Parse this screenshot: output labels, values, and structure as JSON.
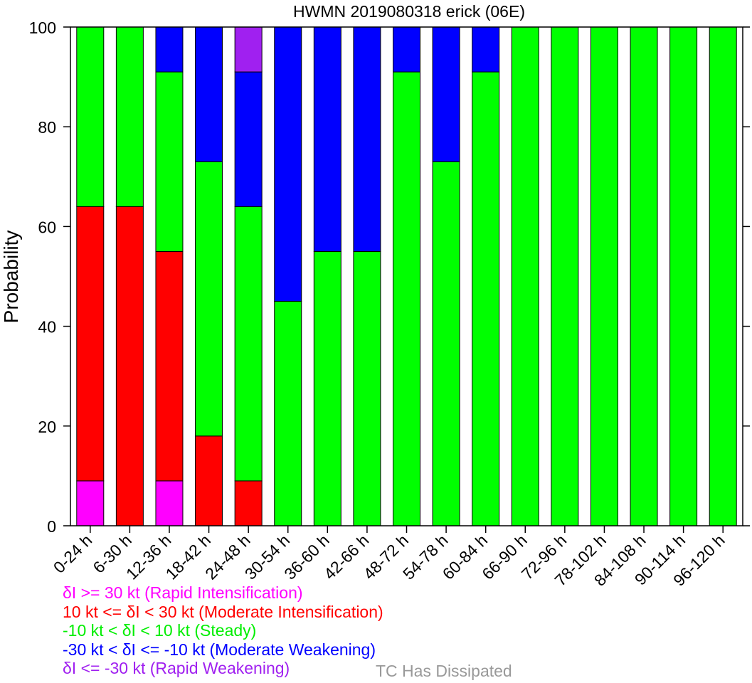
{
  "chart_data": {
    "type": "bar",
    "stacked": true,
    "title": "HWMN 2019080318 erick (06E)",
    "xlabel": "",
    "ylabel": "Probability",
    "ylim": [
      0,
      100
    ],
    "yticks": [
      0,
      20,
      40,
      60,
      80,
      100
    ],
    "grid": false,
    "legend_position": "bottom",
    "categories": [
      "0-24 h",
      "6-30 h",
      "12-36 h",
      "18-42 h",
      "24-48 h",
      "30-54 h",
      "36-60 h",
      "42-66 h",
      "48-72 h",
      "54-78 h",
      "60-84 h",
      "66-90 h",
      "72-96 h",
      "78-102 h",
      "84-108 h",
      "90-114 h",
      "96-120 h"
    ],
    "series": [
      {
        "name": "δI >= 30 kt (Rapid Intensification)",
        "color": "#ff00ff",
        "values": [
          9,
          0,
          9,
          0,
          0,
          0,
          0,
          0,
          0,
          0,
          0,
          0,
          0,
          0,
          0,
          0,
          0
        ]
      },
      {
        "name": "10 kt <= δI < 30 kt (Moderate Intensification)",
        "color": "#ff0000",
        "values": [
          55,
          64,
          46,
          18,
          9,
          0,
          0,
          0,
          0,
          0,
          0,
          0,
          0,
          0,
          0,
          0,
          0
        ]
      },
      {
        "name": "-10 kt < δI < 10 kt (Steady)",
        "color": "#00ff00",
        "values": [
          36,
          36,
          36,
          55,
          55,
          45,
          55,
          55,
          91,
          73,
          91,
          100,
          100,
          100,
          100,
          100,
          100
        ]
      },
      {
        "name": "-30 kt < δI <= -10 kt (Moderate Weakening)",
        "color": "#0000ff",
        "values": [
          0,
          0,
          9,
          27,
          27,
          55,
          45,
          45,
          9,
          27,
          9,
          0,
          0,
          0,
          0,
          0,
          0
        ]
      },
      {
        "name": "δI <= -30 kt (Rapid Weakening)",
        "color": "#a020f0",
        "values": [
          0,
          0,
          0,
          0,
          9,
          0,
          0,
          0,
          0,
          0,
          0,
          0,
          0,
          0,
          0,
          0,
          0
        ]
      }
    ],
    "dissipated_label": "TC Has Dissipated",
    "dissipated_color": "#999999"
  }
}
